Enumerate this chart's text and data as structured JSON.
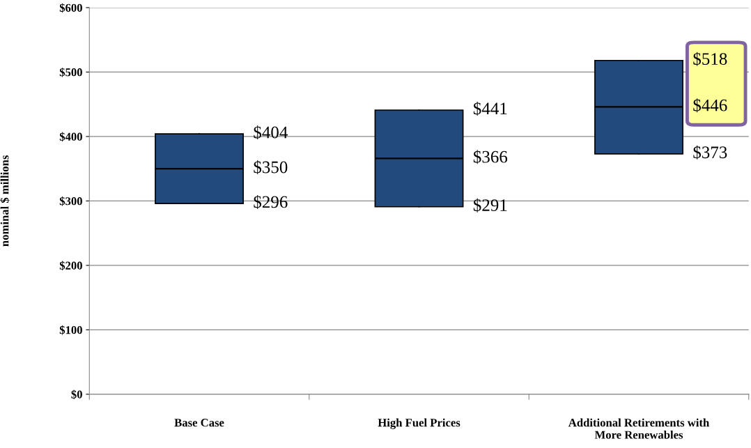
{
  "chart_data": {
    "type": "box",
    "ylabel": "nominal $ millions",
    "categories": [
      "Base Case",
      "High Fuel Prices",
      "Additional Retirements with\nMore Renewables"
    ],
    "series": [
      {
        "color": "#224a7c",
        "boxes": [
          {
            "low": 296,
            "q1": 296,
            "median": 350,
            "q3": 404,
            "high": 404
          },
          {
            "low": 291,
            "q1": 291,
            "median": 366,
            "q3": 441,
            "high": 441
          },
          {
            "low": 373,
            "q1": 373,
            "median": 446,
            "q3": 518,
            "high": 518
          }
        ]
      }
    ],
    "ylim": [
      0,
      600
    ],
    "yticks": [
      {
        "value": 0,
        "label": "$0"
      },
      {
        "value": 100,
        "label": "$100"
      },
      {
        "value": 200,
        "label": "$200"
      },
      {
        "value": 300,
        "label": "$300"
      },
      {
        "value": 400,
        "label": "$400"
      },
      {
        "value": 500,
        "label": "$500"
      },
      {
        "value": 600,
        "label": "$600"
      }
    ],
    "grid": "y",
    "annotations": [
      "$404",
      "$350",
      "$296",
      "$441",
      "$366",
      "$291",
      "$518",
      "$446",
      "$373"
    ]
  }
}
